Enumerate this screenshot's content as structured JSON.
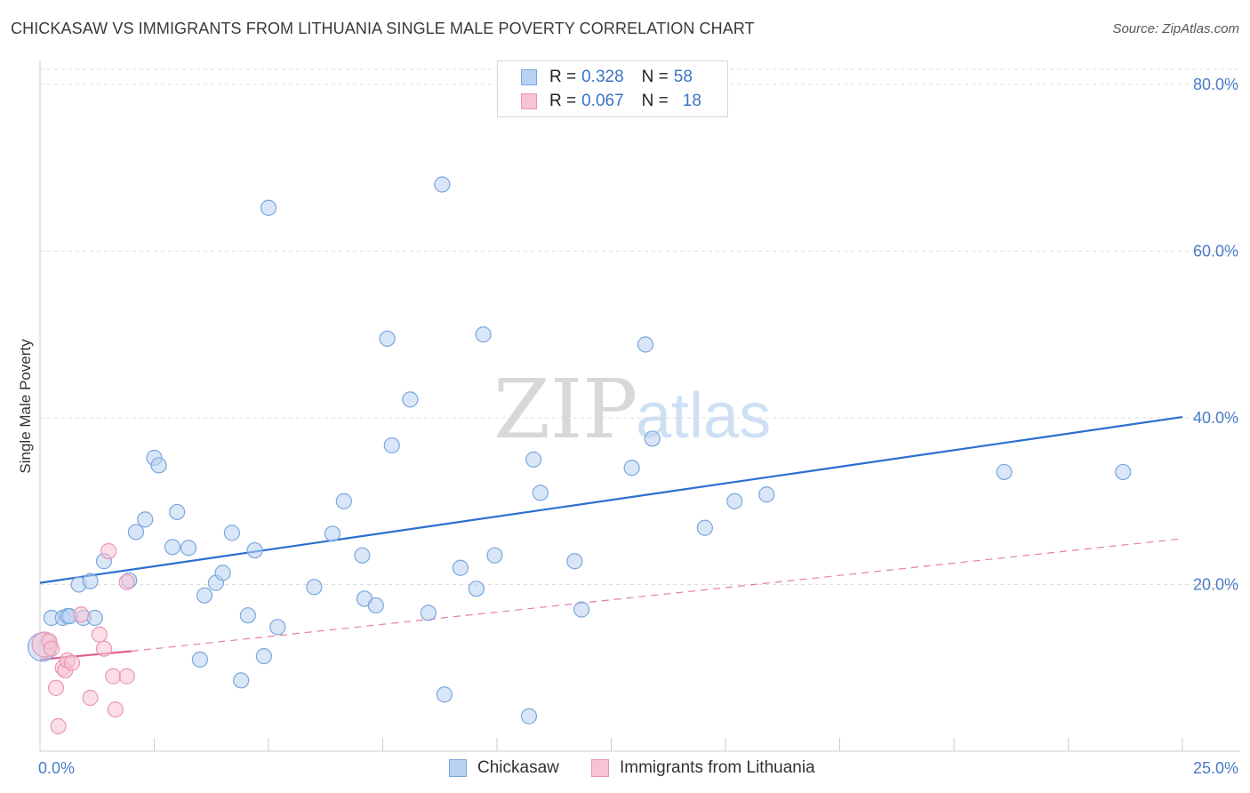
{
  "title": "CHICKASAW VS IMMIGRANTS FROM LITHUANIA SINGLE MALE POVERTY CORRELATION CHART",
  "source": "Source: ZipAtlas.com",
  "watermark": {
    "zip": "ZIP",
    "atlas": "atlas"
  },
  "legend_top": [
    {
      "r_label": "R =",
      "r_value": "0.328",
      "n_label": "N =",
      "n_value": "58"
    },
    {
      "r_label": "R =",
      "r_value": "0.067",
      "n_label": "N =",
      "n_value": "18"
    }
  ],
  "legend_bottom": [
    {
      "label": "Chickasaw"
    },
    {
      "label": "Immigrants from Lithuania"
    }
  ],
  "colors": {
    "blue_fill": "#b9d1f2",
    "blue_stroke": "#7aa6dd",
    "blue_line": "#2b6fd0",
    "pink_fill": "#f7c3d3",
    "pink_stroke": "#e996b2",
    "pink_line": "#e0608a",
    "grid": "#dddddd",
    "axis_text": "#4a7cc6"
  },
  "chart_data": {
    "type": "scatter",
    "title": "CHICKASAW VS IMMIGRANTS FROM LITHUANIA SINGLE MALE POVERTY CORRELATION CHART",
    "xlabel": "",
    "ylabel": "Single Male Poverty",
    "xlim": [
      0,
      25
    ],
    "ylim": [
      0,
      80
    ],
    "x_tick_labels": [
      "0.0%",
      "25.0%"
    ],
    "y_ticks": [
      20,
      40,
      60,
      80
    ],
    "y_tick_labels": [
      "20.0%",
      "40.0%",
      "60.0%",
      "80.0%"
    ],
    "grid": true,
    "series": [
      {
        "name": "Chickasaw",
        "points": [
          [
            0.05,
            12.5
          ],
          [
            0.25,
            16.0
          ],
          [
            0.5,
            16.0
          ],
          [
            0.6,
            16.2
          ],
          [
            0.85,
            20.0
          ],
          [
            0.95,
            16.0
          ],
          [
            1.2,
            16.0
          ],
          [
            1.4,
            22.8
          ],
          [
            1.95,
            20.5
          ],
          [
            2.1,
            26.3
          ],
          [
            2.3,
            27.8
          ],
          [
            2.5,
            35.2
          ],
          [
            2.6,
            34.3
          ],
          [
            2.9,
            24.5
          ],
          [
            3.0,
            28.7
          ],
          [
            3.25,
            24.4
          ],
          [
            3.5,
            11.0
          ],
          [
            3.6,
            18.7
          ],
          [
            3.85,
            20.2
          ],
          [
            4.0,
            21.4
          ],
          [
            4.2,
            26.2
          ],
          [
            4.4,
            8.5
          ],
          [
            4.55,
            16.3
          ],
          [
            4.7,
            24.1
          ],
          [
            4.9,
            11.4
          ],
          [
            5.0,
            65.2
          ],
          [
            5.2,
            14.9
          ],
          [
            6.0,
            19.7
          ],
          [
            6.4,
            26.1
          ],
          [
            6.65,
            30.0
          ],
          [
            7.05,
            23.5
          ],
          [
            7.1,
            18.3
          ],
          [
            7.35,
            17.5
          ],
          [
            7.6,
            49.5
          ],
          [
            7.7,
            36.7
          ],
          [
            8.1,
            42.2
          ],
          [
            8.5,
            16.6
          ],
          [
            8.8,
            68.0
          ],
          [
            8.85,
            6.8
          ],
          [
            9.2,
            22.0
          ],
          [
            9.55,
            19.5
          ],
          [
            9.7,
            50.0
          ],
          [
            9.95,
            23.5
          ],
          [
            10.7,
            4.2
          ],
          [
            10.8,
            35.0
          ],
          [
            10.95,
            31.0
          ],
          [
            11.7,
            22.8
          ],
          [
            11.85,
            17.0
          ],
          [
            12.95,
            34.0
          ],
          [
            13.25,
            48.8
          ],
          [
            13.4,
            37.5
          ],
          [
            14.55,
            26.8
          ],
          [
            15.2,
            30.0
          ],
          [
            15.9,
            30.8
          ],
          [
            21.1,
            33.5
          ],
          [
            23.7,
            33.5
          ],
          [
            1.1,
            20.4
          ],
          [
            0.65,
            16.2
          ]
        ],
        "trend": [
          [
            0,
            20.2
          ],
          [
            25,
            40.1
          ]
        ]
      },
      {
        "name": "Immigrants from Lithuania",
        "points": [
          [
            0.1,
            12.8
          ],
          [
            0.2,
            13.2
          ],
          [
            0.25,
            12.3
          ],
          [
            0.35,
            7.6
          ],
          [
            0.4,
            3.0
          ],
          [
            0.5,
            10.0
          ],
          [
            0.55,
            9.7
          ],
          [
            0.6,
            10.9
          ],
          [
            0.7,
            10.6
          ],
          [
            0.9,
            16.4
          ],
          [
            1.1,
            6.4
          ],
          [
            1.3,
            14.0
          ],
          [
            1.4,
            12.3
          ],
          [
            1.5,
            24.0
          ],
          [
            1.6,
            9.0
          ],
          [
            1.65,
            5.0
          ],
          [
            1.9,
            20.3
          ],
          [
            1.9,
            9.0
          ]
        ],
        "trend_solid": [
          [
            0,
            11.0
          ],
          [
            2.0,
            12.0
          ]
        ],
        "trend_dashed": [
          [
            2.0,
            12.0
          ],
          [
            25,
            25.5
          ]
        ]
      }
    ]
  }
}
